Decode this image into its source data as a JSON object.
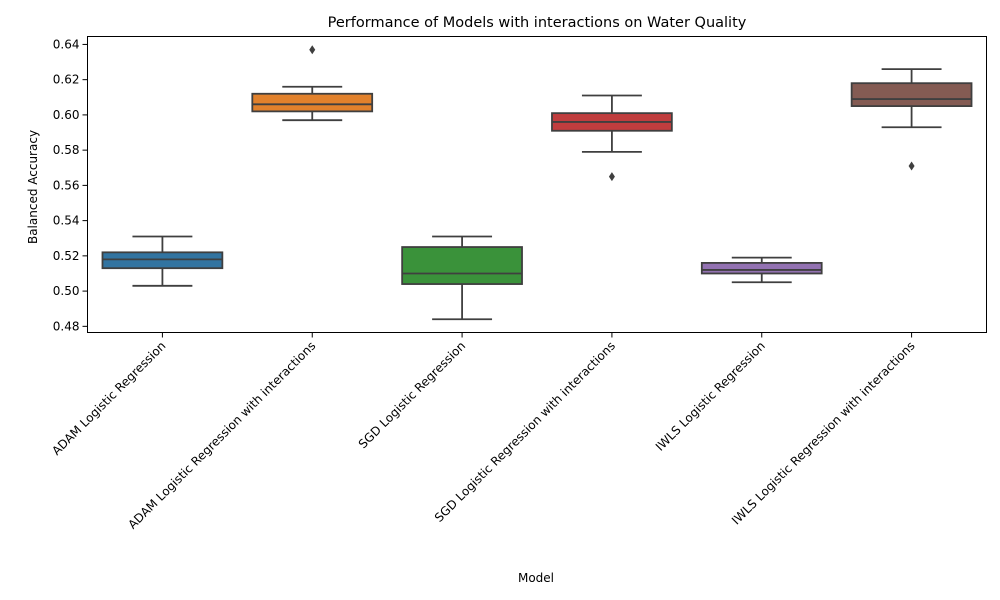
{
  "chart_data": {
    "type": "box",
    "title": "Performance of Models with interactions on Water Quality",
    "xlabel": "Model",
    "ylabel": "Balanced Accuracy",
    "ylim": [
      0.4765,
      0.6445
    ],
    "yticks": [
      0.48,
      0.5,
      0.52,
      0.54,
      0.56,
      0.58,
      0.6,
      0.62,
      0.64
    ],
    "ytick_labels": [
      "0.48",
      "0.50",
      "0.52",
      "0.54",
      "0.56",
      "0.58",
      "0.60",
      "0.62",
      "0.64"
    ],
    "categories": [
      "ADAM Logistic Regression",
      "ADAM Logistic Regression with interactions",
      "SGD Logistic Regression",
      "SGD Logistic Regression with interactions",
      "IWLS Logistic Regression",
      "IWLS Logistic Regression with interactions"
    ],
    "boxes": [
      {
        "whisker_low": 0.503,
        "q1": 0.513,
        "median": 0.518,
        "q3": 0.522,
        "whisker_high": 0.531,
        "outliers": [],
        "color": "#3274a1"
      },
      {
        "whisker_low": 0.597,
        "q1": 0.602,
        "median": 0.606,
        "q3": 0.612,
        "whisker_high": 0.616,
        "outliers": [
          0.637
        ],
        "color": "#e1812c"
      },
      {
        "whisker_low": 0.484,
        "q1": 0.504,
        "median": 0.51,
        "q3": 0.525,
        "whisker_high": 0.531,
        "outliers": [],
        "color": "#3a923a"
      },
      {
        "whisker_low": 0.579,
        "q1": 0.591,
        "median": 0.596,
        "q3": 0.601,
        "whisker_high": 0.611,
        "outliers": [
          0.565
        ],
        "color": "#c03d3e"
      },
      {
        "whisker_low": 0.505,
        "q1": 0.51,
        "median": 0.512,
        "q3": 0.516,
        "whisker_high": 0.519,
        "outliers": [],
        "color": "#9372b2"
      },
      {
        "whisker_low": 0.593,
        "q1": 0.605,
        "median": 0.609,
        "q3": 0.618,
        "whisker_high": 0.626,
        "outliers": [
          0.571
        ],
        "color": "#845b53"
      }
    ],
    "grid": false,
    "legend": "none"
  }
}
